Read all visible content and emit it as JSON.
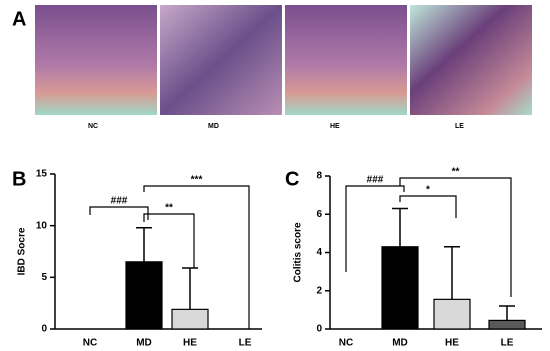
{
  "panel_a": {
    "label": "A",
    "images": [
      "NC",
      "MD",
      "HE",
      "LE"
    ]
  },
  "chart_data": [
    {
      "type": "bar",
      "panel": "B",
      "y_label": "IBD Socre",
      "categories": [
        "NC",
        "MD",
        "HE",
        "LE"
      ],
      "values": [
        0,
        6.5,
        1.9,
        0
      ],
      "errors": [
        0,
        3.3,
        4.0,
        0
      ],
      "colors": [
        "#ffffff",
        "#000000",
        "#d9d9d9",
        "#ffffff"
      ],
      "ylim": [
        0,
        15
      ],
      "yticks": [
        0,
        5,
        10,
        15
      ],
      "annotations": [
        "###",
        "**",
        "***"
      ]
    },
    {
      "type": "bar",
      "panel": "C",
      "y_label": "Colitis score",
      "categories": [
        "NC",
        "MD",
        "HE",
        "LE"
      ],
      "values": [
        0,
        4.3,
        1.55,
        0.45
      ],
      "errors": [
        0,
        2.0,
        2.75,
        0.75
      ],
      "colors": [
        "#ffffff",
        "#000000",
        "#d9d9d9",
        "#595959"
      ],
      "ylim": [
        0,
        8
      ],
      "yticks": [
        0,
        2,
        4,
        6,
        8
      ],
      "annotations": [
        "###",
        "*",
        "**"
      ]
    }
  ]
}
